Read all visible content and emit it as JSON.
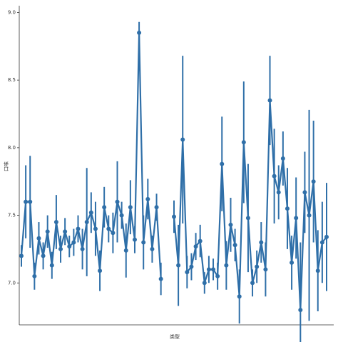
{
  "chart_data": {
    "type": "pointplot",
    "x_label": "类型",
    "y_label": "口味",
    "color": "#2f6fa8",
    "categories": [
      null,
      null,
      null,
      null,
      null,
      null,
      null,
      null,
      null,
      null,
      null,
      null,
      null,
      null,
      null,
      null,
      null,
      null,
      null,
      null,
      null,
      null,
      null,
      null,
      null,
      null,
      null,
      null,
      null,
      null,
      null,
      null,
      null,
      null,
      null,
      null,
      null,
      null,
      null,
      null,
      null,
      null,
      null,
      null,
      null,
      null,
      null,
      null,
      null,
      null,
      null,
      null,
      null,
      null,
      null,
      null,
      null,
      null,
      null,
      null,
      null,
      null,
      null,
      null,
      null,
      null,
      null,
      null,
      null,
      null,
      null
    ],
    "values": [
      7.2,
      7.6,
      7.6,
      7.05,
      7.33,
      7.2,
      7.38,
      7.13,
      7.45,
      7.25,
      7.38,
      7.27,
      7.3,
      7.4,
      7.25,
      7.45,
      7.52,
      7.4,
      7.09,
      7.56,
      7.4,
      7.37,
      7.6,
      7.5,
      7.24,
      7.56,
      7.32,
      8.85,
      7.3,
      7.62,
      7.25,
      7.56,
      7.03,
      null,
      null,
      7.49,
      7.13,
      8.06,
      7.08,
      7.12,
      7.27,
      7.31,
      7.0,
      7.1,
      7.1,
      7.05,
      7.88,
      7.13,
      7.43,
      7.28,
      6.9,
      8.04,
      7.48,
      7.0,
      7.12,
      7.3,
      7.1,
      8.35,
      7.79,
      7.67,
      7.92,
      7.55,
      7.15,
      7.48,
      6.8,
      7.67,
      7.5,
      7.75,
      7.09,
      7.3,
      7.34
    ],
    "errors": [
      0.08,
      0.27,
      0.34,
      0.1,
      0.12,
      0.1,
      0.12,
      0.1,
      0.2,
      0.1,
      0.1,
      0.08,
      0.1,
      0.1,
      0.15,
      0.4,
      0.15,
      0.2,
      0.15,
      0.15,
      0.1,
      0.15,
      0.3,
      0.1,
      0.2,
      0.2,
      0.1,
      0.08,
      0.2,
      0.15,
      0.1,
      0.1,
      0.12,
      null,
      null,
      0.12,
      0.3,
      0.62,
      0.12,
      0.1,
      0.1,
      0.12,
      0.08,
      0.1,
      0.08,
      0.1,
      0.35,
      0.18,
      0.2,
      0.12,
      0.2,
      0.45,
      0.4,
      0.1,
      0.12,
      0.15,
      0.2,
      0.33,
      0.35,
      0.2,
      0.2,
      0.3,
      0.2,
      0.3,
      0.5,
      0.3,
      0.78,
      0.45,
      0.3,
      0.3,
      0.4
    ],
    "ylim": [
      6.69,
      9.05
    ],
    "yticks": [
      {
        "value": 7,
        "label": "7.0"
      },
      7.5,
      {
        "value": 8,
        "label": "8.0"
      },
      8.5,
      {
        "value": 9,
        "label": "9.0"
      }
    ]
  }
}
